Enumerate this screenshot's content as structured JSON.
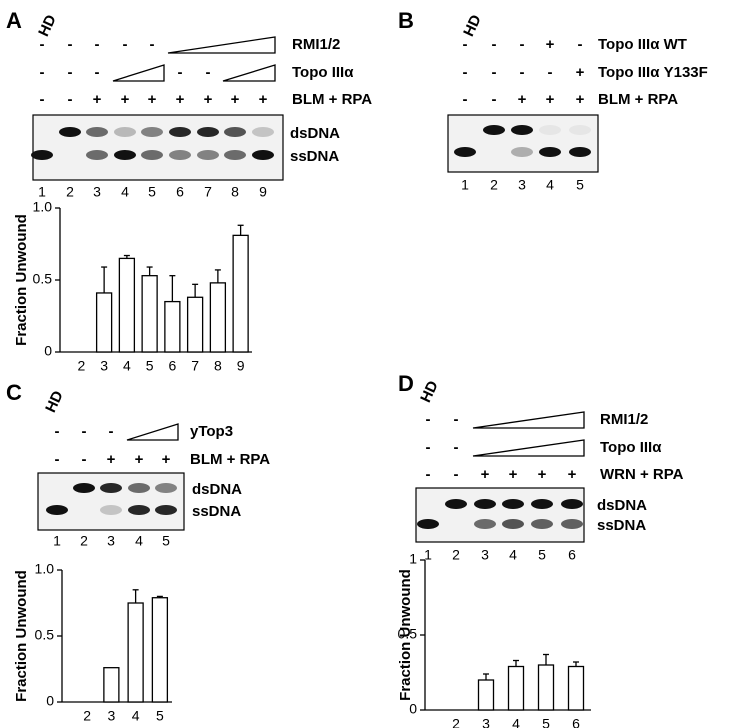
{
  "panels": [
    {
      "label": "A",
      "hd": "HD",
      "rows": [
        {
          "signs": [
            "-",
            "-",
            "-",
            "-",
            "-",
            null,
            null,
            null,
            null
          ],
          "name": "RMI1/2"
        },
        {
          "signs": [
            "-",
            "-",
            "-",
            null,
            null,
            "-",
            "-",
            null,
            null
          ],
          "name": "Topo IIIα"
        },
        {
          "signs": [
            "-",
            "-",
            "+",
            "+",
            "+",
            "+",
            "+",
            "+",
            "+"
          ],
          "name": "BLM + RPA"
        }
      ],
      "gel_labels": [
        "dsDNA",
        "ssDNA"
      ],
      "lanes": [
        "1",
        "2",
        "3",
        "4",
        "5",
        "6",
        "7",
        "8",
        "9"
      ]
    },
    {
      "label": "B",
      "hd": "HD",
      "rows": [
        {
          "signs": [
            "-",
            "-",
            "-",
            "+",
            "-"
          ],
          "name": "Topo IIIα WT"
        },
        {
          "signs": [
            "-",
            "-",
            "-",
            "-",
            "+"
          ],
          "name": "Topo IIIα Y133F"
        },
        {
          "signs": [
            "-",
            "-",
            "+",
            "+",
            "+"
          ],
          "name": "BLM + RPA"
        }
      ],
      "gel_labels": [],
      "lanes": [
        "1",
        "2",
        "3",
        "4",
        "5"
      ]
    },
    {
      "label": "C",
      "hd": "HD",
      "rows": [
        {
          "signs": [
            "-",
            "-",
            "-",
            null,
            null
          ],
          "name": "yTop3"
        },
        {
          "signs": [
            "-",
            "-",
            "+",
            "+",
            "+"
          ],
          "name": "BLM + RPA"
        }
      ],
      "gel_labels": [
        "dsDNA",
        "ssDNA"
      ],
      "lanes": [
        "1",
        "2",
        "3",
        "4",
        "5"
      ]
    },
    {
      "label": "D",
      "hd": "HD",
      "rows": [
        {
          "signs": [
            "-",
            "-",
            null,
            null,
            null,
            null
          ],
          "name": "RMI1/2"
        },
        {
          "signs": [
            "-",
            "-",
            null,
            null,
            null,
            null
          ],
          "name": "Topo IIIα"
        },
        {
          "signs": [
            "-",
            "-",
            "+",
            "+",
            "+",
            "+"
          ],
          "name": "WRN + RPA"
        }
      ],
      "gel_labels": [
        "dsDNA",
        "ssDNA"
      ],
      "lanes": [
        "1",
        "2",
        "3",
        "4",
        "5",
        "6"
      ]
    }
  ],
  "chart_data": [
    {
      "type": "bar",
      "ylabel": "Fraction Unwound",
      "categories": [
        "2",
        "3",
        "4",
        "5",
        "6",
        "7",
        "8",
        "9"
      ],
      "values": [
        0,
        0.41,
        0.65,
        0.53,
        0.35,
        0.38,
        0.48,
        0.81
      ],
      "errors": [
        null,
        0.18,
        0.02,
        0.06,
        0.18,
        0.09,
        0.09,
        0.07
      ],
      "color": "#ffffff",
      "edgecolor": "#000000",
      "ylim": [
        0,
        1
      ],
      "yticks": [
        0,
        0.5,
        {
          "value": 1,
          "label": "1.0"
        }
      ]
    },
    {
      "type": "bar",
      "ylabel": "Fraction Unwound",
      "categories": [
        "2",
        "3",
        "4",
        "5"
      ],
      "values": [
        0,
        0.26,
        0.75,
        0.79
      ],
      "errors": [
        null,
        null,
        0.1,
        0.01
      ],
      "color": "#ffffff",
      "edgecolor": "#000000",
      "ylim": [
        0,
        1
      ],
      "yticks": [
        0,
        0.5,
        {
          "value": 1,
          "label": "1.0"
        }
      ]
    },
    {
      "type": "bar",
      "ylabel": "Fraction Unwound",
      "categories": [
        "2",
        "3",
        "4",
        "5",
        "6"
      ],
      "values": [
        0,
        0.2,
        0.29,
        0.3,
        0.29
      ],
      "errors": [
        null,
        0.04,
        0.04,
        0.07,
        0.03
      ],
      "color": "#ffffff",
      "edgecolor": "#000000",
      "ylim": [
        0,
        1
      ],
      "yticks": [
        0,
        0.5,
        1
      ]
    }
  ]
}
